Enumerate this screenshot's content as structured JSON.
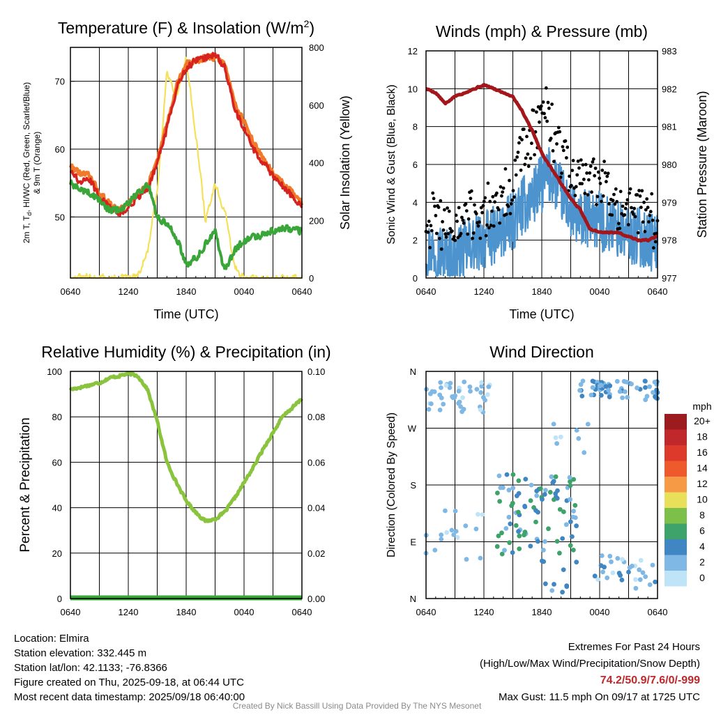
{
  "panels": {
    "temp": {
      "title": "Temperature (F) & Insolation (W/m",
      "title_sup": "2",
      "title_close": ")",
      "ylabel_left_1": "2m T, T",
      "ylabel_left_sub": "d",
      "ylabel_left_2": ", HI/WC (Red, Green, Scarlet/Blue)",
      "ylabel_left_line2": "& 9m T (Orange)",
      "ylabel_right": "Solar Insolation (Yellow)",
      "xlabel": "Time (UTC)"
    },
    "wind": {
      "title": "Winds (mph) & Pressure (mb)",
      "ylabel_left": "Sonic Wind & Gust (Blue, Black)",
      "ylabel_right": "Station Pressure (Maroon)",
      "xlabel": "Time (UTC)"
    },
    "rh": {
      "title": "Relative Humidity (%) & Precipitation (in)",
      "ylabel_left": "Percent & Precipitation"
    },
    "dir": {
      "title": "Wind Direction",
      "ylabel_left": "Direction (Colored By Speed)",
      "colorbar_title": "mph",
      "colorbar_labels": [
        "20+",
        "18",
        "16",
        "14",
        "12",
        "10",
        "8",
        "6",
        "4",
        "2",
        "0"
      ]
    }
  },
  "colors": {
    "temp_2m": "#d6231f",
    "temp_9m": "#f07a2a",
    "dewpoint": "#3aa63a",
    "insolation": "#f5e05a",
    "wind": "#4d94cf",
    "gust": "#000000",
    "pressure": "#a3171c",
    "rh": "#8ac43f",
    "precip": "#3aa63a",
    "colorbar": [
      "#9b1b1e",
      "#c0282c",
      "#de3a2c",
      "#ef5a2c",
      "#f79a45",
      "#e8e05a",
      "#7cc04a",
      "#3ea36a",
      "#3f86c2",
      "#7fb8e4",
      "#bfe3f7"
    ]
  },
  "chart_data": [
    {
      "type": "line",
      "title": "Temperature (F) & Insolation (W/m2)",
      "xlabel": "Time (UTC)",
      "ylabel": "2m T, Td, HI/WC (Red, Green, Scarlet/Blue) & 9m T (Orange)",
      "y2label": "Solar Insolation (Yellow)",
      "x_ticks": [
        "0640",
        "1240",
        "1840",
        "0040",
        "0640"
      ],
      "ylim": [
        41,
        75
      ],
      "yticks": [
        50,
        60,
        70
      ],
      "y2lim": [
        0,
        800
      ],
      "y2ticks": [
        0,
        200,
        400,
        600,
        800
      ],
      "grid": true,
      "x": [
        0,
        1,
        2,
        3,
        4,
        5,
        6,
        7,
        8,
        9,
        10,
        11,
        12,
        13,
        14,
        15,
        16,
        17,
        18,
        19,
        20,
        21,
        22,
        23,
        24
      ],
      "series": [
        {
          "name": "2m T",
          "axis": "left",
          "values": [
            57,
            55,
            55.5,
            53,
            51.5,
            50.5,
            51.5,
            53,
            54,
            58,
            63,
            69,
            72,
            73,
            73.5,
            74,
            72,
            66,
            63,
            60,
            58,
            56,
            54.5,
            53,
            51.5
          ]
        },
        {
          "name": "9m T",
          "axis": "left",
          "values": [
            57.5,
            56.5,
            56,
            53.5,
            52,
            51,
            52,
            53.5,
            54.5,
            58.5,
            63.5,
            69.5,
            72.5,
            73,
            73.5,
            73.5,
            72.5,
            67,
            64,
            61,
            58.5,
            56.5,
            55,
            53.5,
            52
          ]
        },
        {
          "name": "Td",
          "axis": "left",
          "values": [
            55,
            54,
            53.5,
            52.5,
            51,
            51,
            52,
            53.5,
            55,
            50,
            49,
            47,
            43,
            44,
            46,
            48,
            42,
            45,
            46.5,
            47,
            47.5,
            48,
            48.5,
            48,
            48
          ]
        },
        {
          "name": "Solar Insolation",
          "axis": "right",
          "values": [
            0,
            0,
            0,
            0,
            0,
            0,
            0,
            5,
            90,
            300,
            720,
            630,
            760,
            500,
            200,
            320,
            230,
            40,
            0,
            0,
            0,
            0,
            0,
            0,
            0
          ]
        }
      ]
    },
    {
      "type": "line",
      "title": "Winds (mph) & Pressure (mb)",
      "xlabel": "Time (UTC)",
      "ylabel": "Sonic Wind & Gust (Blue, Black)",
      "y2label": "Station Pressure (Maroon)",
      "x_ticks": [
        "0640",
        "1240",
        "1840",
        "0040",
        "0640"
      ],
      "ylim": [
        0,
        12
      ],
      "yticks": [
        0,
        2,
        4,
        6,
        8,
        10,
        12
      ],
      "y2lim": [
        977,
        983
      ],
      "y2ticks": [
        977,
        978,
        979,
        980,
        981,
        982,
        983
      ],
      "grid": true,
      "x": [
        0,
        1,
        2,
        3,
        4,
        5,
        6,
        7,
        8,
        9,
        10,
        11,
        12,
        13,
        14,
        15,
        16,
        17,
        18,
        19,
        20,
        21,
        22,
        23,
        24
      ],
      "series": [
        {
          "name": "Sonic Wind",
          "axis": "left",
          "values": [
            1.5,
            1.5,
            1.2,
            1.0,
            1.5,
            1.8,
            2.0,
            2.2,
            2.5,
            3.0,
            3.8,
            4.2,
            5.0,
            5.5,
            4.5,
            3.5,
            3.0,
            3.2,
            3.0,
            2.8,
            2.5,
            2.2,
            2.2,
            2.0,
            1.8
          ]
        },
        {
          "name": "Gust",
          "axis": "left",
          "values": [
            3.0,
            3.2,
            2.8,
            2.5,
            3.0,
            3.2,
            3.5,
            3.8,
            4.2,
            5.0,
            6.5,
            7.5,
            9.0,
            8.0,
            6.5,
            5.5,
            5.0,
            5.5,
            5.0,
            4.5,
            4.0,
            3.8,
            3.5,
            3.2,
            3.0
          ]
        },
        {
          "name": "Station Pressure",
          "axis": "right",
          "values": [
            982.0,
            981.9,
            981.6,
            981.8,
            981.9,
            982.0,
            982.1,
            982.0,
            981.9,
            981.8,
            981.4,
            980.9,
            980.3,
            979.9,
            979.5,
            979.1,
            978.8,
            978.3,
            978.2,
            978.2,
            978.2,
            978.1,
            978.0,
            978.0,
            978.1
          ]
        }
      ],
      "max_gust": 11.5
    },
    {
      "type": "line",
      "title": "Relative Humidity (%) & Precipitation (in)",
      "ylabel": "Percent & Precipitation",
      "x_ticks": [
        "0640",
        "1240",
        "1840",
        "0040",
        "0640"
      ],
      "ylim": [
        0,
        100
      ],
      "yticks": [
        0,
        20,
        40,
        60,
        80,
        100
      ],
      "y2lim": [
        0,
        0.1
      ],
      "y2ticks": [
        "0.00",
        "0.02",
        "0.04",
        "0.06",
        "0.08",
        "0.10"
      ],
      "grid": true,
      "x": [
        0,
        1,
        2,
        3,
        4,
        5,
        6,
        7,
        8,
        9,
        10,
        11,
        12,
        13,
        14,
        15,
        16,
        17,
        18,
        19,
        20,
        21,
        22,
        23,
        24
      ],
      "series": [
        {
          "name": "Relative Humidity",
          "axis": "left",
          "values": [
            92,
            93,
            94,
            95,
            97,
            98,
            99,
            98,
            92,
            78,
            60,
            51,
            43,
            38,
            34,
            35,
            38,
            44,
            51,
            58,
            66,
            73,
            80,
            84,
            88
          ]
        },
        {
          "name": "Precipitation",
          "axis": "right",
          "values": [
            0,
            0,
            0,
            0,
            0,
            0,
            0,
            0,
            0,
            0,
            0,
            0,
            0,
            0,
            0,
            0,
            0,
            0,
            0,
            0,
            0,
            0,
            0,
            0,
            0
          ]
        }
      ]
    },
    {
      "type": "scatter",
      "title": "Wind Direction",
      "ylabel": "Direction (Colored By Speed)",
      "x_ticks": [
        "0640",
        "1240",
        "1840",
        "0040",
        "0640"
      ],
      "ylim": [
        0,
        360
      ],
      "yticks": [
        "N",
        "E",
        "S",
        "W",
        "N"
      ],
      "grid": true,
      "colorbar": {
        "title": "mph",
        "range": [
          0,
          20
        ]
      }
    }
  ],
  "info": {
    "location": "Location: Elmira",
    "elevation": "Station elevation: 332.445 m",
    "latlon": "Station lat/lon: 42.1133; -76.8366",
    "created": "Figure created on Thu, 2025-09-18, at 06:44 UTC",
    "recent": "Most recent data timestamp: 2025/09/18 06:40:00"
  },
  "extremes": {
    "title": "Extremes For Past 24 Hours",
    "subtitle": "(High/Low/Max Wind/Precipitation/Snow Depth)",
    "values": "74.2/50.9/7.6/0/-999",
    "max_gust": "Max Gust: 11.5 mph On 09/17 at 1725 UTC"
  },
  "credit": "Created By Nick Bassill Using Data Provided By The NYS Mesonet"
}
